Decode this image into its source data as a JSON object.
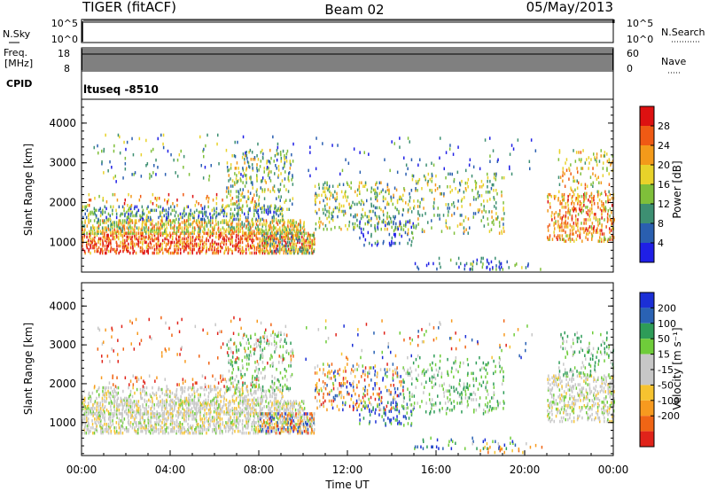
{
  "header": {
    "title": "TIGER (fitACF)",
    "beam": "Beam 02",
    "date": "05/May/2013"
  },
  "status_panels": {
    "nsky": {
      "label": "N.Sky",
      "ticks": [
        "10^5",
        "10^0"
      ],
      "right_ticks": [
        "10^5",
        "10^0"
      ],
      "right_label": "N.Search"
    },
    "freq": {
      "label_line1": "Freq.",
      "label_line2": "[MHz]",
      "ticks": [
        "18",
        "8"
      ],
      "right_ticks": [
        "60",
        "0"
      ],
      "right_label": "Nave"
    },
    "cpid": {
      "label": "CPID",
      "value": "ltuseq -8510"
    }
  },
  "colors": {
    "power": [
      "#1f1fe6",
      "#2a5fb0",
      "#3d8f72",
      "#7fbf3a",
      "#e8d22a",
      "#f39a1a",
      "#ef5a14",
      "#dd1111"
    ],
    "velocity": [
      "#1b2fd6",
      "#2a62b4",
      "#2e9c58",
      "#6fcc3a",
      "#c7c7c7",
      "#c7c7c7",
      "#f6c330",
      "#f79a1f",
      "#f06515",
      "#e0231a"
    ]
  },
  "chart_data": [
    {
      "type": "heatmap",
      "name": "Power",
      "xlabel": "",
      "ylabel": "Slant Range [km]",
      "ylim": [
        250,
        4600
      ],
      "xlim": [
        0,
        24
      ],
      "yticks": [
        1000,
        2000,
        3000,
        4000
      ],
      "ytick_labels": [
        "1000",
        "2000",
        "3000",
        "4000"
      ],
      "colorbar_label": "Power [dB]",
      "colorbar_ticks": [
        "4",
        "8",
        "12",
        "16",
        "20",
        "24",
        "28"
      ],
      "colorbar_range": [
        0,
        32
      ]
    },
    {
      "type": "heatmap",
      "name": "Velocity",
      "xlabel": "Time UT",
      "ylabel": "Slant Range [km]",
      "ylim": [
        150,
        4600
      ],
      "xlim": [
        0,
        24
      ],
      "yticks": [
        1000,
        2000,
        3000,
        4000
      ],
      "ytick_labels": [
        "1000",
        "2000",
        "3000",
        "4000"
      ],
      "xticks": [
        0,
        4,
        8,
        12,
        16,
        20,
        24
      ],
      "xtick_labels": [
        "00:00",
        "04:00",
        "08:00",
        "12:00",
        "16:00",
        "20:00",
        "00:00"
      ],
      "colorbar_label": "Velocity [m s⁻¹]",
      "colorbar_ticks": [
        "200",
        "100",
        "50",
        "15",
        "-15",
        "-50",
        "-100",
        "-200"
      ]
    }
  ]
}
